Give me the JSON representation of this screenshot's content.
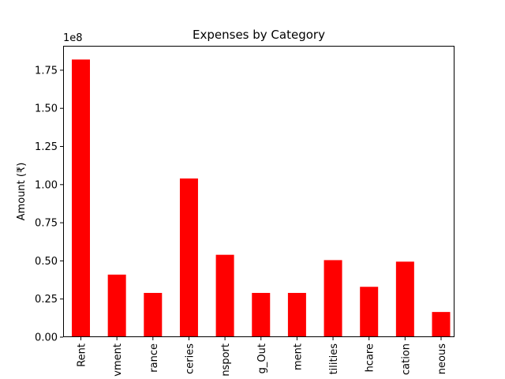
{
  "chart_data": {
    "type": "bar",
    "title": "Expenses by Category",
    "xlabel": "",
    "ylabel": "Amount (₹)",
    "y_offset_label": "1e8",
    "ylim": [
      0,
      1.91
    ],
    "ytick_values": [
      0.0,
      0.25,
      0.5,
      0.75,
      1.0,
      1.25,
      1.5,
      1.75
    ],
    "ytick_labels": [
      "0.00",
      "0.25",
      "0.50",
      "0.75",
      "1.00",
      "1.25",
      "1.50",
      "1.75"
    ],
    "categories": [
      "Rent",
      "vment",
      "rance",
      "ceries",
      "nsport",
      "g_Out",
      "ment",
      "tilities",
      "hcare",
      "cation",
      "neous"
    ],
    "values": [
      1.82,
      0.41,
      0.29,
      1.04,
      0.54,
      0.29,
      0.29,
      0.505,
      0.33,
      0.495,
      0.165
    ],
    "bar_color": "#ff0000",
    "grid": false,
    "legend": "none"
  }
}
